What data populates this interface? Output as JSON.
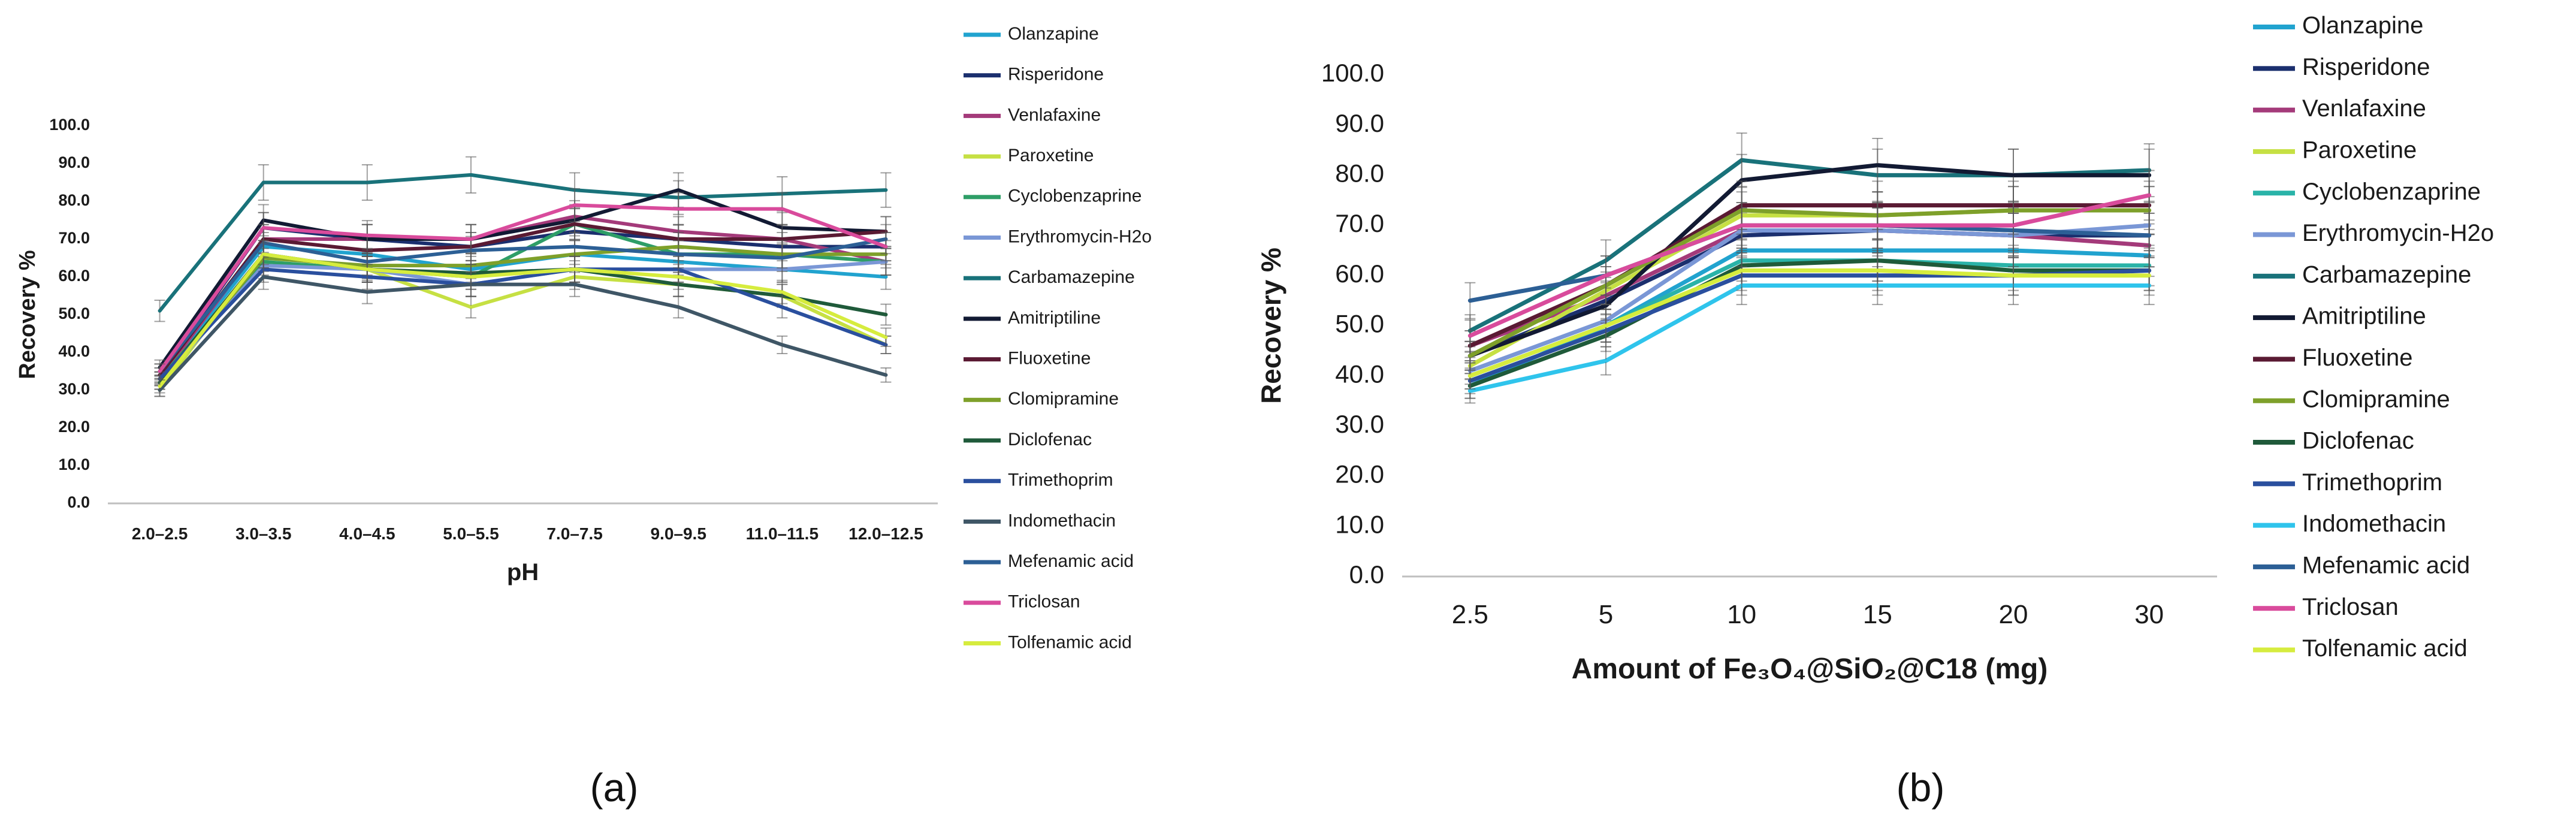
{
  "panel_labels": [
    "(a)",
    "(b)"
  ],
  "chart_data": [
    {
      "type": "line",
      "panel": "(a)",
      "title": "",
      "xlabel": "pH",
      "ylabel": "Recovery %",
      "ylim": [
        0,
        100
      ],
      "yticks": [
        "0.0",
        "10.0",
        "20.0",
        "30.0",
        "40.0",
        "50.0",
        "60.0",
        "70.0",
        "80.0",
        "90.0",
        "100.0"
      ],
      "grid": false,
      "legend": "right",
      "categories": [
        "2.0–2.5",
        "3.0–3.5",
        "4.0–4.5",
        "5.0–5.5",
        "7.0–7.5",
        "9.0–9.5",
        "11.0–11.5",
        "12.0–12.5"
      ],
      "series": [
        {
          "name": "Olanzapine",
          "color": "#21a3cf",
          "values": [
            33,
            68,
            66,
            62,
            66,
            64,
            62,
            60
          ]
        },
        {
          "name": "Risperidone",
          "color": "#1b2f6e",
          "values": [
            34,
            73,
            70,
            68,
            72,
            70,
            68,
            68
          ]
        },
        {
          "name": "Venlafaxine",
          "color": "#a43a7a",
          "values": [
            33,
            70,
            70,
            70,
            76,
            72,
            70,
            64
          ]
        },
        {
          "name": "Paroxetine",
          "color": "#c6e043",
          "values": [
            30,
            66,
            62,
            52,
            60,
            58,
            55,
            42
          ]
        },
        {
          "name": "Cyclobenzaprine",
          "color": "#2e9e67",
          "values": [
            33,
            64,
            62,
            60,
            74,
            66,
            66,
            64
          ]
        },
        {
          "name": "Erythromycin-H2o",
          "color": "#7a97d6",
          "values": [
            32,
            63,
            62,
            58,
            62,
            62,
            62,
            64
          ]
        },
        {
          "name": "Carbamazepine",
          "color": "#19727a",
          "values": [
            51,
            85,
            85,
            87,
            83,
            81,
            82,
            83
          ]
        },
        {
          "name": "Amitriptiline",
          "color": "#121a33",
          "values": [
            36,
            75,
            70,
            70,
            75,
            83,
            73,
            72
          ]
        },
        {
          "name": "Fluoxetine",
          "color": "#5a1a33",
          "values": [
            34,
            70,
            67,
            68,
            74,
            70,
            70,
            72
          ]
        },
        {
          "name": "Clomipramine",
          "color": "#7ea02a",
          "values": [
            32,
            65,
            63,
            63,
            66,
            68,
            66,
            66
          ]
        },
        {
          "name": "Diclofenac",
          "color": "#1f5a3a",
          "values": [
            32,
            66,
            62,
            61,
            62,
            58,
            55,
            50
          ]
        },
        {
          "name": "Trimethoprim",
          "color": "#2a4f9e",
          "values": [
            33,
            62,
            60,
            58,
            62,
            62,
            52,
            42
          ]
        },
        {
          "name": "Indomethacin",
          "color": "#3f5666",
          "values": [
            30,
            60,
            56,
            58,
            58,
            52,
            42,
            34
          ]
        },
        {
          "name": "Mefenamic acid",
          "color": "#2c5f95",
          "values": [
            35,
            69,
            64,
            67,
            68,
            66,
            65,
            70
          ]
        },
        {
          "name": "Triclosan",
          "color": "#d94b9c",
          "values": [
            35,
            73,
            71,
            70,
            79,
            78,
            78,
            68
          ]
        },
        {
          "name": "Tolfenamic acid",
          "color": "#d6ec3e",
          "values": [
            31,
            66,
            62,
            60,
            62,
            60,
            56,
            44
          ]
        }
      ]
    },
    {
      "type": "line",
      "panel": "(b)",
      "title": "",
      "xlabel": "Amount of Fe₃O₄@SiO₂@C18  (mg)",
      "ylabel": "Recovery %",
      "ylim": [
        0,
        100
      ],
      "yticks": [
        "0.0",
        "10.0",
        "20.0",
        "30.0",
        "40.0",
        "50.0",
        "60.0",
        "70.0",
        "80.0",
        "90.0",
        "100.0"
      ],
      "grid": false,
      "legend": "right",
      "categories": [
        "2.5",
        "5",
        "10",
        "15",
        "20",
        "30"
      ],
      "series": [
        {
          "name": "Olanzapine",
          "color": "#21a3cf",
          "values": [
            38,
            50,
            65,
            65,
            65,
            64
          ]
        },
        {
          "name": "Risperidone",
          "color": "#1b2f6e",
          "values": [
            44,
            55,
            68,
            69,
            68,
            68
          ]
        },
        {
          "name": "Venlafaxine",
          "color": "#a43a7a",
          "values": [
            46,
            56,
            69,
            69,
            68,
            66
          ]
        },
        {
          "name": "Paroxetine",
          "color": "#c6e043",
          "values": [
            42,
            57,
            72,
            72,
            73,
            73
          ]
        },
        {
          "name": "Cyclobenzaprine",
          "color": "#2ab3a8",
          "values": [
            40,
            50,
            63,
            63,
            62,
            62
          ]
        },
        {
          "name": "Erythromycin-H2o",
          "color": "#7a97d6",
          "values": [
            41,
            51,
            69,
            69,
            68,
            70
          ]
        },
        {
          "name": "Carbamazepine",
          "color": "#19727a",
          "values": [
            49,
            63,
            83,
            80,
            80,
            81
          ]
        },
        {
          "name": "Amitriptiline",
          "color": "#121a33",
          "values": [
            44,
            54,
            79,
            82,
            80,
            80
          ]
        },
        {
          "name": "Fluoxetine",
          "color": "#5a1a33",
          "values": [
            46,
            58,
            74,
            74,
            74,
            74
          ]
        },
        {
          "name": "Clomipramine",
          "color": "#7ea02a",
          "values": [
            44,
            58,
            73,
            72,
            73,
            73
          ]
        },
        {
          "name": "Diclofenac",
          "color": "#1f5a3a",
          "values": [
            38,
            48,
            62,
            63,
            61,
            61
          ]
        },
        {
          "name": "Trimethoprim",
          "color": "#2a4f9e",
          "values": [
            39,
            49,
            60,
            60,
            60,
            61
          ]
        },
        {
          "name": "Indomethacin",
          "color": "#2fc4ec",
          "values": [
            37,
            43,
            58,
            58,
            58,
            58
          ]
        },
        {
          "name": "Mefenamic acid",
          "color": "#2c5f95",
          "values": [
            55,
            60,
            70,
            70,
            69,
            68
          ]
        },
        {
          "name": "Triclosan",
          "color": "#d94b9c",
          "values": [
            48,
            60,
            70,
            70,
            70,
            76
          ]
        },
        {
          "name": "Tolfenamic acid",
          "color": "#d6ec3e",
          "values": [
            40,
            50,
            61,
            61,
            60,
            60
          ]
        }
      ]
    }
  ]
}
